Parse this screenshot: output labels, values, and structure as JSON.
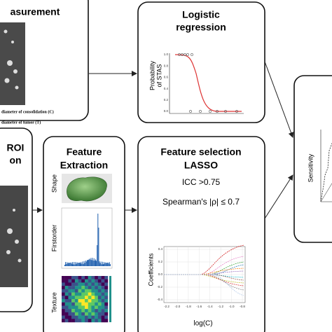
{
  "boxes": {
    "measurement": {
      "title": "asurement",
      "labels": [
        "diameter of consolidation (C)",
        "diameter of tumor (T)"
      ]
    },
    "roi": {
      "title_lines": [
        "ROI",
        "on"
      ]
    },
    "logistic": {
      "title_lines": [
        "Logistic",
        "regression"
      ],
      "y_label_lines": [
        "Probability",
        "of STAS"
      ],
      "yticks": [
        "1.0",
        "0.8",
        "0.6",
        "0.4",
        "0.2",
        "0.0"
      ]
    },
    "extraction": {
      "title_lines": [
        "Feature",
        "Extraction"
      ],
      "panels": [
        "Shape",
        "Firstorder",
        "Texture"
      ]
    },
    "lasso": {
      "title_lines": [
        "Feature selection",
        "LASSO"
      ],
      "criteria": [
        "ICC >0.75",
        "Spearman's |ρ| ≤ 0.7"
      ],
      "y_label": "Coefficients",
      "x_label": "log(C)",
      "xticks": [
        "-2.2",
        "-2.0",
        "-1.8",
        "-1.6",
        "-1.4",
        "-1.2",
        "-1.0",
        "-0.8"
      ],
      "yticks": [
        "0.4",
        "0.2",
        "0.0",
        "-0.2",
        "-0.4"
      ]
    },
    "roc": {
      "y_label": "Sensitivity"
    }
  }
}
